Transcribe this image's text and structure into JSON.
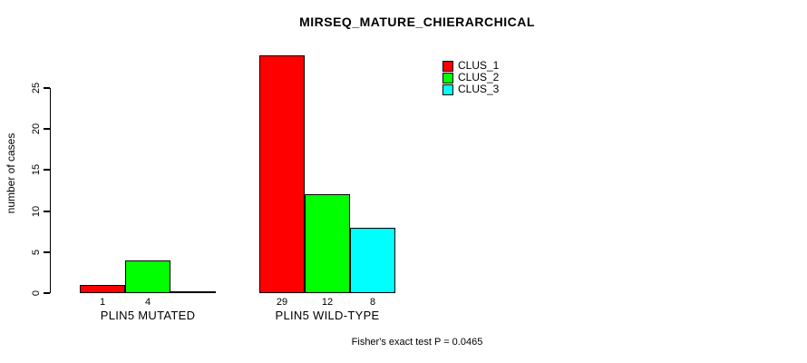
{
  "chart_data": {
    "type": "bar",
    "title": "MIRSEQ_MATURE_CHIERARCHICAL",
    "ylabel": "number of cases",
    "xlabel": "",
    "annotation": "Fisher's exact test P = 0.0465",
    "categories": [
      "PLIN5 MUTATED",
      "PLIN5 WILD-TYPE"
    ],
    "series": [
      {
        "name": "CLUS_1",
        "color": "#ff0000",
        "values": [
          1,
          29
        ]
      },
      {
        "name": "CLUS_2",
        "color": "#00ff00",
        "values": [
          4,
          12
        ]
      },
      {
        "name": "CLUS_3",
        "color": "#00ffff",
        "values": [
          0,
          8
        ]
      }
    ],
    "bar_value_labels": [
      [
        1,
        4,
        null
      ],
      [
        29,
        12,
        8
      ]
    ],
    "yticks": [
      0,
      5,
      10,
      15,
      20,
      25
    ],
    "ylim": [
      0,
      29
    ],
    "grid": false,
    "legend_position": "top-right",
    "legend_entries": [
      "CLUS_1",
      "CLUS_2",
      "CLUS_3"
    ],
    "background_color": "#ffffff",
    "axis_color": "#000000",
    "text_color": "#000000"
  }
}
